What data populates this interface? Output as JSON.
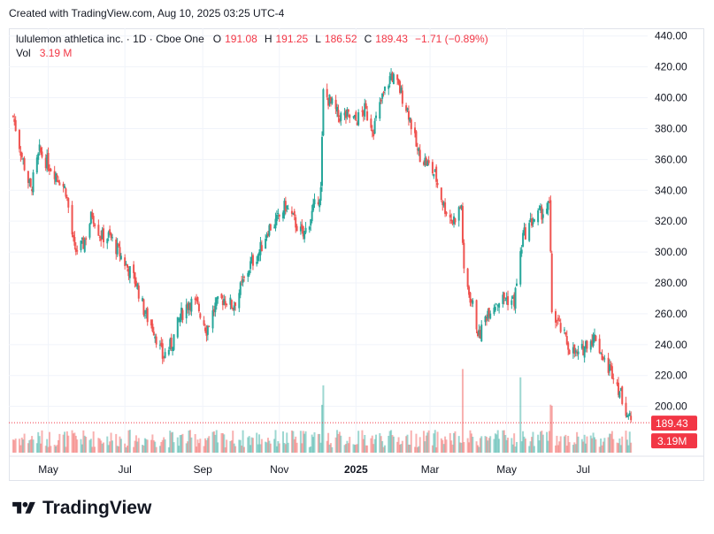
{
  "header": {
    "created_text": "Created with TradingView.com, Aug 10, 2025 03:25 UTC-4"
  },
  "legend": {
    "title": "lululemon athletica inc. · 1D · Cboe One",
    "o_label": "O",
    "o_value": "191.08",
    "h_label": "H",
    "h_value": "191.25",
    "l_label": "L",
    "l_value": "186.52",
    "c_label": "C",
    "c_value": "189.43",
    "change": "−1.71 (−0.89%)",
    "vol_label": "Vol",
    "vol_value": "3.19 M"
  },
  "brand": {
    "name": "TradingView"
  },
  "colors": {
    "up": "#26a69a",
    "down": "#ef5350",
    "grid": "#f0f3fa",
    "price_line": "#f23645",
    "text": "#131722"
  },
  "chart_data": {
    "type": "candlestick",
    "symbol": "lululemon athletica inc.",
    "interval": "1D",
    "exchange": "Cboe One",
    "y_ticks": [
      200,
      220,
      240,
      260,
      280,
      300,
      320,
      340,
      360,
      380,
      400,
      420,
      440
    ],
    "ylim": [
      170,
      445
    ],
    "x_labels": [
      "May",
      "Jul",
      "Sep",
      "Nov",
      "2025",
      "Mar",
      "May",
      "Jul"
    ],
    "last_price_label": "189.43",
    "last_volume_label": "3.19M",
    "grid": true,
    "approx_close_path": [
      {
        "date": "2024-04-03",
        "close": 388
      },
      {
        "date": "2024-04-10",
        "close": 362
      },
      {
        "date": "2024-04-17",
        "close": 340
      },
      {
        "date": "2024-04-24",
        "close": 365
      },
      {
        "date": "2024-05-01",
        "close": 357
      },
      {
        "date": "2024-05-08",
        "close": 350
      },
      {
        "date": "2024-05-15",
        "close": 340
      },
      {
        "date": "2024-05-22",
        "close": 300
      },
      {
        "date": "2024-05-29",
        "close": 305
      },
      {
        "date": "2024-06-05",
        "close": 325
      },
      {
        "date": "2024-06-12",
        "close": 310
      },
      {
        "date": "2024-06-19",
        "close": 310
      },
      {
        "date": "2024-06-26",
        "close": 300
      },
      {
        "date": "2024-07-03",
        "close": 290
      },
      {
        "date": "2024-07-10",
        "close": 280
      },
      {
        "date": "2024-07-17",
        "close": 260
      },
      {
        "date": "2024-07-24",
        "close": 250
      },
      {
        "date": "2024-07-31",
        "close": 232
      },
      {
        "date": "2024-08-07",
        "close": 240
      },
      {
        "date": "2024-08-14",
        "close": 258
      },
      {
        "date": "2024-08-21",
        "close": 268
      },
      {
        "date": "2024-08-28",
        "close": 265
      },
      {
        "date": "2024-09-04",
        "close": 250
      },
      {
        "date": "2024-09-11",
        "close": 265
      },
      {
        "date": "2024-09-18",
        "close": 270
      },
      {
        "date": "2024-09-25",
        "close": 265
      },
      {
        "date": "2024-10-02",
        "close": 278
      },
      {
        "date": "2024-10-09",
        "close": 292
      },
      {
        "date": "2024-10-16",
        "close": 300
      },
      {
        "date": "2024-10-23",
        "close": 315
      },
      {
        "date": "2024-10-30",
        "close": 320
      },
      {
        "date": "2024-11-06",
        "close": 330
      },
      {
        "date": "2024-11-13",
        "close": 320
      },
      {
        "date": "2024-11-20",
        "close": 310
      },
      {
        "date": "2024-11-27",
        "close": 325
      },
      {
        "date": "2024-12-04",
        "close": 340
      },
      {
        "date": "2024-12-06",
        "close": 403
      },
      {
        "date": "2024-12-11",
        "close": 398
      },
      {
        "date": "2024-12-18",
        "close": 388
      },
      {
        "date": "2024-12-25",
        "close": 388
      },
      {
        "date": "2025-01-01",
        "close": 385
      },
      {
        "date": "2025-01-08",
        "close": 392
      },
      {
        "date": "2025-01-15",
        "close": 380
      },
      {
        "date": "2025-01-22",
        "close": 400
      },
      {
        "date": "2025-01-29",
        "close": 415
      },
      {
        "date": "2025-02-05",
        "close": 405
      },
      {
        "date": "2025-02-12",
        "close": 390
      },
      {
        "date": "2025-02-19",
        "close": 365
      },
      {
        "date": "2025-02-26",
        "close": 358
      },
      {
        "date": "2025-03-05",
        "close": 350
      },
      {
        "date": "2025-03-12",
        "close": 330
      },
      {
        "date": "2025-03-19",
        "close": 320
      },
      {
        "date": "2025-03-26",
        "close": 330
      },
      {
        "date": "2025-03-28",
        "close": 285
      },
      {
        "date": "2025-04-04",
        "close": 265
      },
      {
        "date": "2025-04-09",
        "close": 245
      },
      {
        "date": "2025-04-16",
        "close": 262
      },
      {
        "date": "2025-04-23",
        "close": 268
      },
      {
        "date": "2025-04-30",
        "close": 270
      },
      {
        "date": "2025-05-07",
        "close": 268
      },
      {
        "date": "2025-05-14",
        "close": 310
      },
      {
        "date": "2025-05-21",
        "close": 320
      },
      {
        "date": "2025-05-28",
        "close": 325
      },
      {
        "date": "2025-06-04",
        "close": 330
      },
      {
        "date": "2025-06-06",
        "close": 262
      },
      {
        "date": "2025-06-13",
        "close": 250
      },
      {
        "date": "2025-06-20",
        "close": 238
      },
      {
        "date": "2025-06-27",
        "close": 232
      },
      {
        "date": "2025-07-04",
        "close": 242
      },
      {
        "date": "2025-07-11",
        "close": 245
      },
      {
        "date": "2025-07-18",
        "close": 228
      },
      {
        "date": "2025-07-25",
        "close": 222
      },
      {
        "date": "2025-08-01",
        "close": 205
      },
      {
        "date": "2025-08-08",
        "close": 189.43
      }
    ]
  }
}
